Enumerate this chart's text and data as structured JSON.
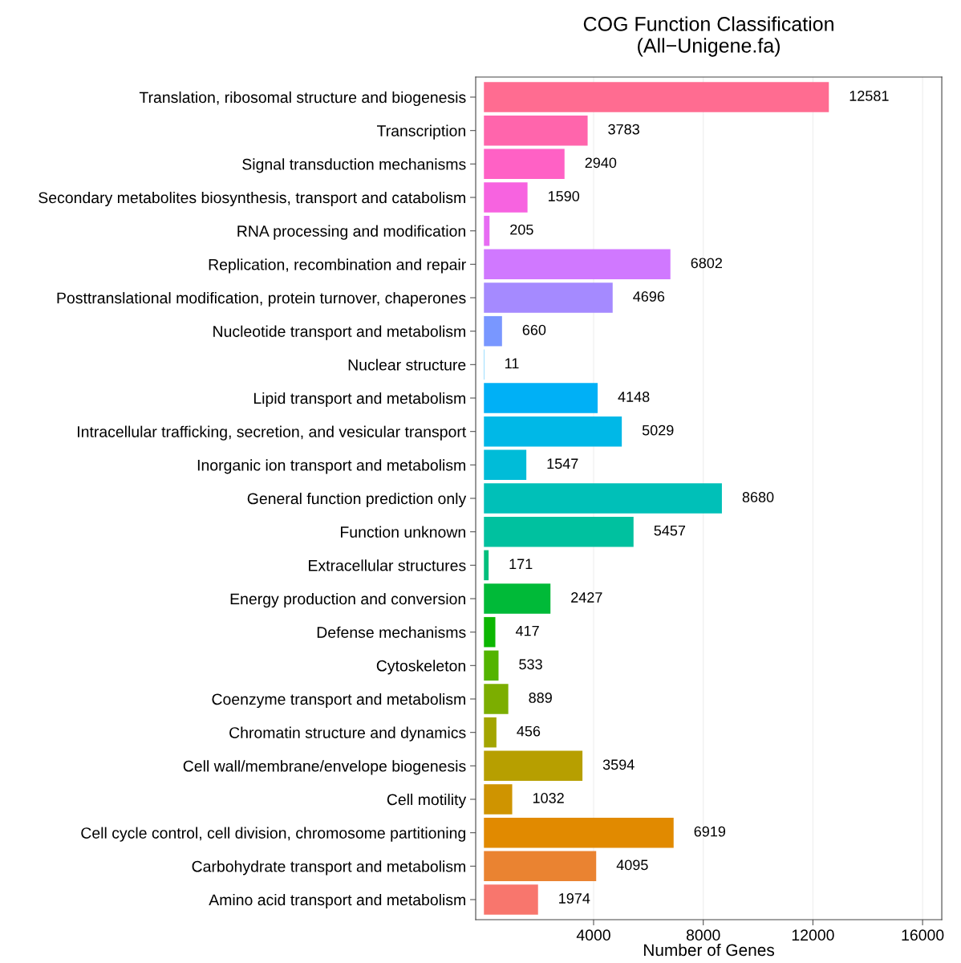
{
  "chart_data": {
    "type": "bar",
    "orientation": "horizontal",
    "title": "COG Function Classification\n(All−Unigene.fa)",
    "xlabel": "Number of Genes",
    "categories": [
      "Translation, ribosomal structure and biogenesis",
      "Transcription",
      "Signal transduction mechanisms",
      "Secondary metabolites biosynthesis, transport and catabolism",
      "RNA processing and modification",
      "Replication, recombination and repair",
      "Posttranslational modification, protein turnover, chaperones",
      "Nucleotide transport and metabolism",
      "Nuclear structure",
      "Lipid transport and metabolism",
      "Intracellular trafficking, secretion, and vesicular transport",
      "Inorganic ion transport and metabolism",
      "General function prediction only",
      "Function unknown",
      "Extracellular structures",
      "Energy production and conversion",
      "Defense mechanisms",
      "Cytoskeleton",
      "Coenzyme transport and metabolism",
      "Chromatin structure and dynamics",
      "Cell wall/membrane/envelope biogenesis",
      "Cell motility",
      "Cell cycle control, cell division, chromosome partitioning",
      "Carbohydrate transport and metabolism",
      "Amino acid transport and metabolism"
    ],
    "values": [
      12581,
      3783,
      2940,
      1590,
      205,
      6802,
      4696,
      660,
      11,
      4148,
      5029,
      1547,
      8680,
      5457,
      171,
      2427,
      417,
      533,
      889,
      456,
      3594,
      1032,
      6919,
      4095,
      1974
    ],
    "colors": [
      "#ff6c91",
      "#ff65ac",
      "#ff61c5",
      "#f763e0",
      "#e76bf3",
      "#d078ff",
      "#a58aff",
      "#7997ff",
      "#00a9ff",
      "#00b0f6",
      "#00b8e7",
      "#00bcd8",
      "#00c0b8",
      "#00c19f",
      "#00bf7d",
      "#00ba38",
      "#0cb702",
      "#53b400",
      "#7cae00",
      "#a3a500",
      "#b79f00",
      "#cf9400",
      "#e18a00",
      "#ea8331",
      "#f8766d"
    ],
    "data_labels": true,
    "log": false,
    "xlim": [
      -300,
      16700
    ],
    "xticks": [
      4000,
      8000,
      12000,
      16000
    ],
    "grid": "x",
    "legend": false
  }
}
